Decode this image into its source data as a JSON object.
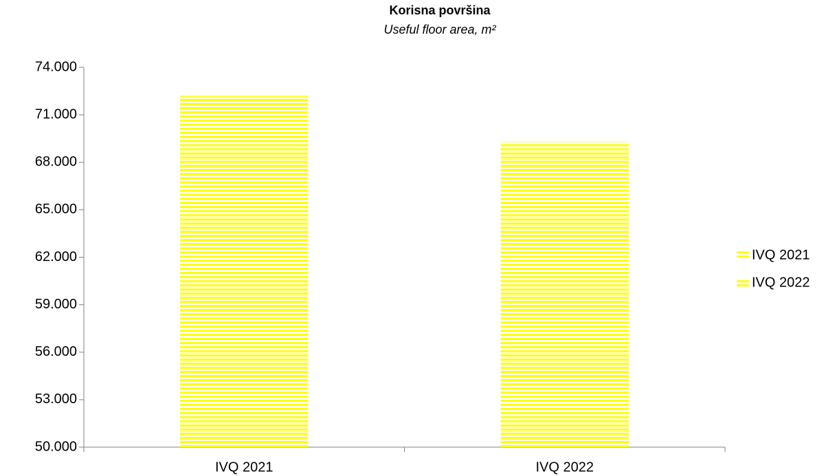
{
  "chart_data": {
    "type": "bar",
    "title": "Korisna površina",
    "subtitle": "Useful floor area, m²",
    "categories": [
      "IVQ 2021",
      "IVQ 2022"
    ],
    "series": [
      {
        "name": "IVQ 2021",
        "color": "#ffff00",
        "values": [
          72200,
          null
        ]
      },
      {
        "name": "IVQ 2022",
        "color": "#ffff00",
        "values": [
          null,
          69300
        ]
      }
    ],
    "ylim": [
      50000,
      74000
    ],
    "yticks": [
      {
        "value": 50000,
        "label": "50.000"
      },
      {
        "value": 53000,
        "label": "53.000"
      },
      {
        "value": 56000,
        "label": "56.000"
      },
      {
        "value": 59000,
        "label": "59.000"
      },
      {
        "value": 62000,
        "label": "62.000"
      },
      {
        "value": 65000,
        "label": "65.000"
      },
      {
        "value": 68000,
        "label": "68.000"
      },
      {
        "value": 71000,
        "label": "71.000"
      },
      {
        "value": 74000,
        "label": "74.000"
      }
    ],
    "grid": false,
    "legend": "right"
  }
}
